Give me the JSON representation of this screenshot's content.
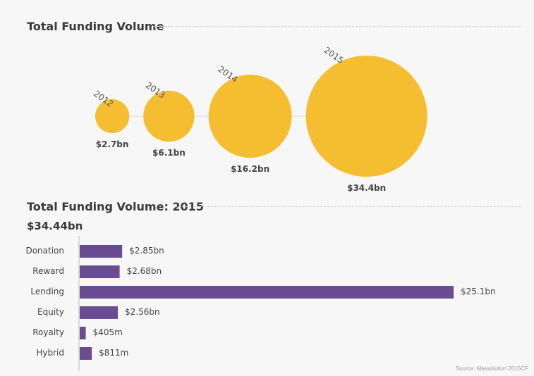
{
  "chart_data": [
    {
      "type": "bubble",
      "title": "Total Funding Volume",
      "categories": [
        "2012",
        "2013",
        "2014",
        "2015"
      ],
      "values": [
        2.7,
        6.1,
        16.2,
        34.4
      ],
      "labels": [
        "$2.7bn",
        "$6.1bn",
        "$16.2bn",
        "$34.4bn"
      ],
      "color": "#f4be30"
    },
    {
      "type": "bar",
      "orientation": "horizontal",
      "title": "Total Funding Volume: 2015",
      "total": "$34.44bn",
      "categories": [
        "Donation",
        "Reward",
        "Lending",
        "Equity",
        "Royalty",
        "Hybrid"
      ],
      "values": [
        2.85,
        2.68,
        25.1,
        2.56,
        0.405,
        0.811
      ],
      "labels": [
        "$2.85bn",
        "$2.68bn",
        "$25.1bn",
        "$2.56bn",
        "$405m",
        "$811m"
      ],
      "color": "#6a4c93"
    }
  ],
  "source": "Source: Massolution 2015CF"
}
